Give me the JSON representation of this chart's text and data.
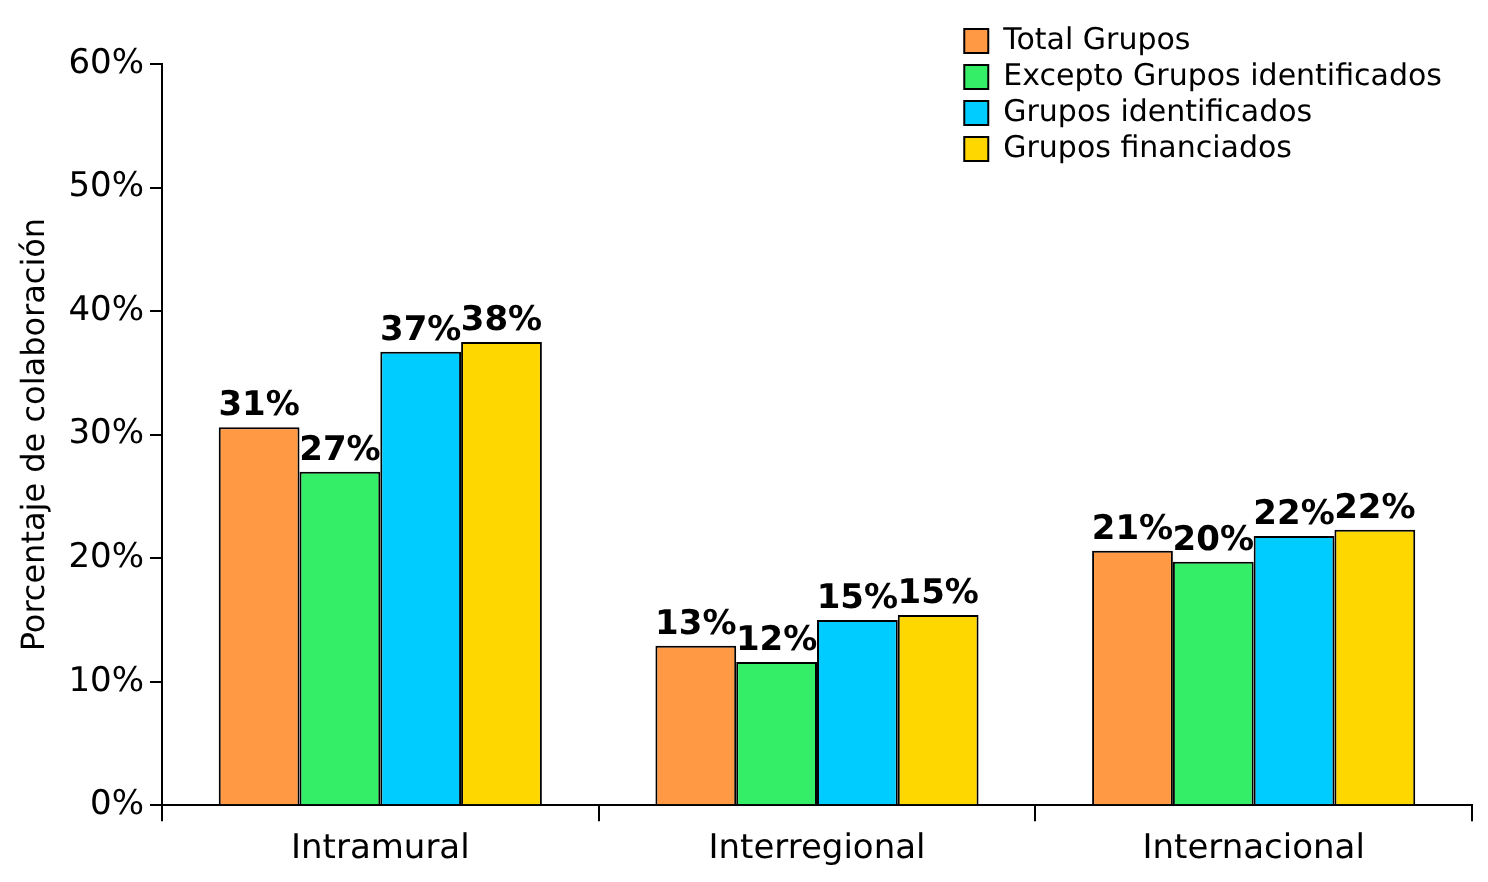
{
  "chart_data": {
    "type": "bar",
    "ylabel": "Porcentaje de colaboración",
    "categories": [
      "Intramural",
      "Interregional",
      "Internacional"
    ],
    "series": [
      {
        "name": "Total Grupos",
        "color": "#ff9944",
        "values": [
          30.6,
          12.9,
          20.6
        ],
        "value_labels": [
          "31%",
          "13%",
          "21%"
        ]
      },
      {
        "name": "Excepto Grupos identificados",
        "color": "#33ee66",
        "values": [
          27.0,
          11.6,
          19.7
        ],
        "value_labels": [
          "27%",
          "12%",
          "20%"
        ]
      },
      {
        "name": "Grupos identificados",
        "color": "#00ccff",
        "values": [
          36.7,
          15.0,
          21.8
        ],
        "value_labels": [
          "37%",
          "15%",
          "22%"
        ]
      },
      {
        "name": "Grupos financiados",
        "color": "#ffd700",
        "values": [
          37.5,
          15.4,
          22.3
        ],
        "value_labels": [
          "38%",
          "15%",
          "22%"
        ]
      }
    ],
    "ylim": [
      0,
      60
    ],
    "yticks": [
      {
        "value": 0,
        "label": "0%"
      },
      {
        "value": 10,
        "label": "10%"
      },
      {
        "value": 20,
        "label": "20%"
      },
      {
        "value": 30,
        "label": "30%"
      },
      {
        "value": 40,
        "label": "40%"
      },
      {
        "value": 50,
        "label": "50%"
      },
      {
        "value": 60,
        "label": "60%"
      }
    ],
    "legend": "top right"
  }
}
